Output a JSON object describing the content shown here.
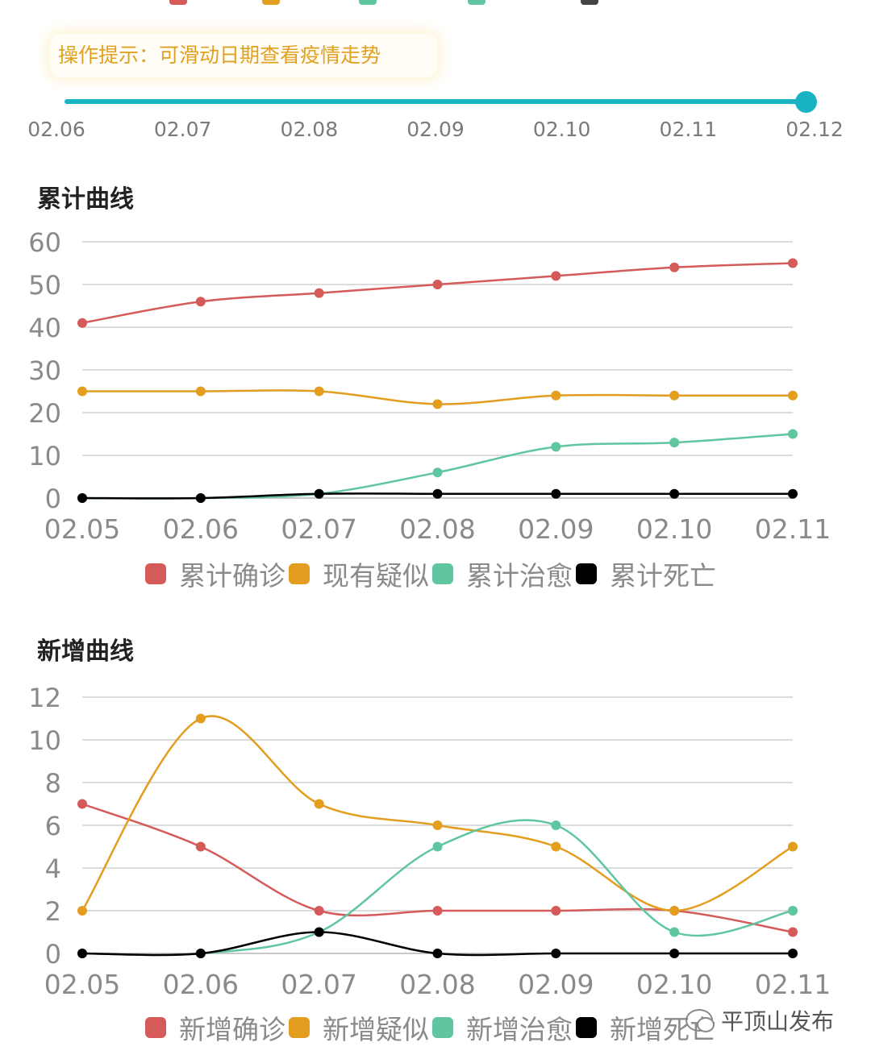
{
  "colors": {
    "accent": "#19b3c4",
    "tip_text": "#e0a021",
    "confirmed": "#d55a5a",
    "suspected": "#e39d1f",
    "cured": "#5fc6a0",
    "death": "#000000",
    "grid": "#dcdcdc",
    "axis_text": "#8a8a8a"
  },
  "tip": {
    "text": "操作提示：可滑动日期查看疫情走势"
  },
  "slider": {
    "dates": [
      "02.06",
      "02.07",
      "02.08",
      "02.09",
      "02.10",
      "02.11",
      "02.12"
    ],
    "selected": "02.12"
  },
  "chart_data": [
    {
      "type": "line",
      "title": "累计曲线",
      "categories": [
        "02.05",
        "02.06",
        "02.07",
        "02.08",
        "02.09",
        "02.10",
        "02.11"
      ],
      "y_ticks": [
        "0",
        "10",
        "20",
        "30",
        "40",
        "50",
        "60"
      ],
      "ylim": [
        0,
        60
      ],
      "grid": true,
      "legend_position": "bottom",
      "series": [
        {
          "name": "累计确诊",
          "color_key": "confirmed",
          "values": [
            41,
            46,
            48,
            50,
            52,
            54,
            55
          ]
        },
        {
          "name": "现有疑似",
          "color_key": "suspected",
          "values": [
            25,
            25,
            25,
            22,
            24,
            24,
            24
          ]
        },
        {
          "name": "累计治愈",
          "color_key": "cured",
          "values": [
            0,
            0,
            1,
            6,
            12,
            13,
            15
          ]
        },
        {
          "name": "累计死亡",
          "color_key": "death",
          "values": [
            0,
            0,
            1,
            1,
            1,
            1,
            1
          ]
        }
      ]
    },
    {
      "type": "line",
      "title": "新增曲线",
      "categories": [
        "02.05",
        "02.06",
        "02.07",
        "02.08",
        "02.09",
        "02.10",
        "02.11"
      ],
      "y_ticks": [
        "0",
        "2",
        "4",
        "6",
        "8",
        "10",
        "12"
      ],
      "ylim": [
        0,
        12
      ],
      "grid": true,
      "legend_position": "bottom",
      "series": [
        {
          "name": "新增确诊",
          "color_key": "confirmed",
          "values": [
            7,
            5,
            2,
            2,
            2,
            2,
            1
          ]
        },
        {
          "name": "新增疑似",
          "color_key": "suspected",
          "values": [
            2,
            11,
            7,
            6,
            5,
            2,
            5
          ]
        },
        {
          "name": "新增治愈",
          "color_key": "cured",
          "values": [
            0,
            0,
            1,
            5,
            6,
            1,
            2
          ]
        },
        {
          "name": "新增死亡",
          "color_key": "death",
          "values": [
            0,
            0,
            1,
            0,
            0,
            0,
            0
          ]
        }
      ]
    }
  ],
  "watermark": {
    "text": "平顶山发布",
    "icon": "wechat-icon"
  }
}
